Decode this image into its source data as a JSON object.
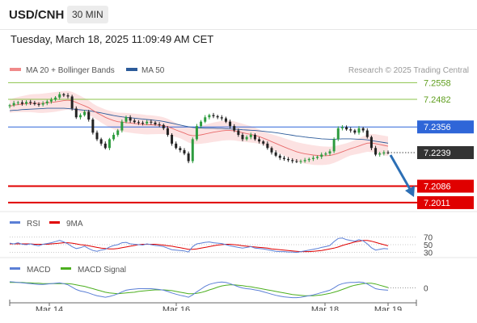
{
  "header": {
    "symbol": "USD/CNH",
    "interval": "30 MIN",
    "timestamp": "Tuesday, March 18, 2025 11:09:49 AM CET"
  },
  "chart_data": {
    "type": "candlestick",
    "legend": [
      {
        "name": "MA 20 + Bollinger Bands",
        "color": "#f08a8a"
      },
      {
        "name": "MA 50",
        "color": "#2c5b9a"
      }
    ],
    "copyright": "Research © 2025 Trading Central",
    "price_ylim": [
      7.1985,
      7.2585
    ],
    "levels": [
      {
        "label": "7.2558",
        "value": 7.2558,
        "kind": "resistance",
        "color": "#8bc34a"
      },
      {
        "label": "7.2482",
        "value": 7.2482,
        "kind": "resistance",
        "color": "#8bc34a"
      },
      {
        "label": "7.2356",
        "value": 7.2356,
        "kind": "pivot",
        "color": "#2f66d8"
      },
      {
        "label": "7.2239",
        "value": 7.2239,
        "kind": "last",
        "color": "#333333"
      },
      {
        "label": "7.2086",
        "value": 7.2086,
        "kind": "target",
        "color": "#e00000"
      },
      {
        "label": "7.2011",
        "value": 7.2011,
        "kind": "target",
        "color": "#e00000"
      }
    ],
    "forecast_arrow": {
      "from": 7.2239,
      "to": 7.204,
      "color": "#2c6fb5"
    },
    "close": [
      7.2455,
      7.2465,
      7.2468,
      7.2462,
      7.247,
      7.2466,
      7.246,
      7.2458,
      7.2464,
      7.2472,
      7.248,
      7.249,
      7.2505,
      7.25,
      7.2495,
      7.244,
      7.24,
      7.241,
      7.2425,
      7.239,
      7.233,
      7.23,
      7.228,
      7.226,
      7.23,
      7.232,
      7.234,
      7.238,
      7.24,
      7.2385,
      7.2378,
      7.2375,
      7.2372,
      7.238,
      7.2376,
      7.2368,
      7.2365,
      7.235,
      7.232,
      7.228,
      7.226,
      7.225,
      7.2235,
      7.22,
      7.23,
      7.236,
      7.238,
      7.24,
      7.241,
      7.2405,
      7.24,
      7.2395,
      7.238,
      7.236,
      7.234,
      7.232,
      7.23,
      7.231,
      7.232,
      7.23,
      7.229,
      7.228,
      7.226,
      7.224,
      7.2225,
      7.2215,
      7.221,
      7.2205,
      7.22,
      7.2198,
      7.22,
      7.2205,
      7.221,
      7.2215,
      7.222,
      7.223,
      7.2235,
      7.2245,
      7.23,
      7.235,
      7.2355,
      7.2345,
      7.234,
      7.233,
      7.235,
      7.234,
      7.231,
      7.226,
      7.223,
      7.2235,
      7.224,
      7.2239
    ],
    "ma20": [
      7.245,
      7.2455,
      7.2458,
      7.246,
      7.2462,
      7.2464,
      7.2464,
      7.2463,
      7.2464,
      7.2466,
      7.2468,
      7.247,
      7.2473,
      7.2476,
      7.2478,
      7.2475,
      7.2468,
      7.246,
      7.2452,
      7.2444,
      7.2432,
      7.242,
      7.241,
      7.24,
      7.2392,
      7.2385,
      7.238,
      7.2378,
      7.2376,
      7.2374,
      7.2372,
      7.237,
      7.2368,
      7.2366,
      7.2366,
      7.2365,
      7.2364,
      7.2362,
      7.2357,
      7.235,
      7.2342,
      7.2335,
      7.2328,
      7.232,
      7.2316,
      7.2317,
      7.232,
      7.2324,
      7.2328,
      7.2332,
      7.2335,
      7.2338,
      7.234,
      7.234,
      7.2338,
      7.2334,
      7.233,
      7.2326,
      7.2322,
      7.2318,
      7.2312,
      7.2305,
      7.2297,
      7.2289,
      7.2281,
      7.2273,
      7.2265,
      7.2257,
      7.225,
      7.2243,
      7.2238,
      7.2234,
      7.2231,
      7.2228,
      7.2226,
      7.2225,
      7.2225,
      7.2226,
      7.223,
      7.2236,
      7.2243,
      7.225,
      7.2257,
      7.2263,
      7.2269,
      7.2276,
      7.2282,
      7.2283,
      7.228,
      7.2276,
      7.2272,
      7.2268
    ],
    "ma50": [
      7.243,
      7.2432,
      7.2433,
      7.2435,
      7.2436,
      7.2437,
      7.2438,
      7.2439,
      7.244,
      7.2441,
      7.2441,
      7.2441,
      7.2441,
      7.2441,
      7.244,
      7.2438,
      7.2436,
      7.2434,
      7.2432,
      7.243,
      7.2427,
      7.2423,
      7.242,
      7.2416,
      7.2412,
      7.2408,
      7.2405,
      7.2402,
      7.24,
      7.2398,
      7.2396,
      7.2394,
      7.2392,
      7.239,
      7.2388,
      7.2386,
      7.2384,
      7.2381,
      7.2377,
      7.2373,
      7.2369,
      7.2365,
      7.2361,
      7.2357,
      7.2354,
      7.2352,
      7.2351,
      7.235,
      7.235,
      7.235,
      7.2349,
      7.2349,
      7.2348,
      7.2347,
      7.2346,
      7.2345,
      7.2343,
      7.2342,
      7.2341,
      7.234,
      7.2338,
      7.2336,
      7.2334,
      7.2332,
      7.233,
      7.2327,
      7.2324,
      7.2321,
      7.2318,
      7.2315,
      7.2313,
      7.231,
      7.2308,
      7.2306,
      7.2304,
      7.2302,
      7.2301,
      7.23,
      7.23,
      7.2301,
      7.2302,
      7.2302,
      7.2302,
      7.2301,
      7.23,
      7.2299,
      7.2297,
      7.2294,
      7.2291,
      7.2288,
      7.2285,
      7.2282
    ],
    "rsi": {
      "legend": [
        {
          "name": "RSI",
          "color": "#5b7fd6"
        },
        {
          "name": "9MA",
          "color": "#e00000"
        }
      ],
      "ylim": [
        25,
        75
      ],
      "ticks": [
        "70",
        "50",
        "30"
      ],
      "rsi": [
        54,
        52,
        55,
        51,
        50,
        52,
        49,
        47,
        51,
        53,
        55,
        58,
        61,
        57,
        52,
        45,
        40,
        42,
        46,
        40,
        35,
        33,
        36,
        38,
        44,
        48,
        50,
        55,
        56,
        52,
        51,
        50,
        49,
        52,
        50,
        48,
        47,
        45,
        41,
        37,
        36,
        35,
        34,
        31,
        45,
        52,
        54,
        56,
        57,
        55,
        54,
        53,
        50,
        47,
        45,
        43,
        41,
        43,
        45,
        41,
        40,
        39,
        37,
        35,
        33,
        32,
        32,
        31,
        31,
        30,
        32,
        34,
        36,
        38,
        40,
        43,
        45,
        48,
        58,
        66,
        67,
        63,
        61,
        59,
        63,
        60,
        52,
        42,
        36,
        38,
        40,
        39
      ],
      "ma": [
        52,
        52,
        52,
        52,
        52,
        52,
        51,
        51,
        51,
        51,
        52,
        53,
        54,
        55,
        55,
        54,
        52,
        50,
        49,
        47,
        45,
        43,
        41,
        40,
        39,
        39,
        40,
        42,
        44,
        46,
        48,
        50,
        51,
        51,
        51,
        51,
        50,
        49,
        47,
        46,
        44,
        42,
        40,
        38,
        38,
        39,
        41,
        43,
        45,
        47,
        49,
        50,
        51,
        51,
        50,
        49,
        47,
        46,
        45,
        44,
        43,
        42,
        41,
        39,
        38,
        37,
        36,
        35,
        34,
        33,
        32,
        32,
        32,
        33,
        34,
        35,
        37,
        39,
        41,
        44,
        48,
        51,
        54,
        57,
        59,
        61,
        61,
        59,
        56,
        53,
        50,
        47
      ]
    },
    "macd": {
      "legend": [
        {
          "name": "MACD",
          "color": "#5b7fd6"
        },
        {
          "name": "MACD Signal",
          "color": "#4caf1f"
        }
      ],
      "ylim": [
        -0.003,
        0.0024
      ],
      "zero_label": "0",
      "macd": [
        0.0016,
        0.0015,
        0.0014,
        0.0013,
        0.0012,
        0.0011,
        0.001,
        0.0009,
        0.0009,
        0.001,
        0.0011,
        0.0012,
        0.0013,
        0.0011,
        0.0008,
        0.0002,
        -0.0004,
        -0.0008,
        -0.001,
        -0.0013,
        -0.0017,
        -0.002,
        -0.0022,
        -0.0024,
        -0.0022,
        -0.0019,
        -0.0015,
        -0.001,
        -0.0006,
        -0.0004,
        -0.0003,
        -0.0002,
        -0.0002,
        -0.0002,
        -0.0002,
        -0.0003,
        -0.0004,
        -0.0006,
        -0.0009,
        -0.0013,
        -0.0016,
        -0.0019,
        -0.0021,
        -0.0024,
        -0.0018,
        -0.001,
        -0.0003,
        0.0004,
        0.0009,
        0.0012,
        0.0014,
        0.0015,
        0.0014,
        0.0011,
        0.0007,
        0.0003,
        0.0,
        -0.0002,
        -0.0003,
        -0.0005,
        -0.0007,
        -0.001,
        -0.0013,
        -0.0016,
        -0.0019,
        -0.0021,
        -0.0023,
        -0.0024,
        -0.0025,
        -0.0025,
        -0.0024,
        -0.0022,
        -0.002,
        -0.0018,
        -0.0015,
        -0.0012,
        -0.0009,
        -0.0006,
        0.0,
        0.0007,
        0.0011,
        0.0013,
        0.0014,
        0.0014,
        0.0015,
        0.0014,
        0.001,
        0.0004,
        -0.0002,
        -0.0004,
        -0.0005,
        -0.0006
      ],
      "signal": [
        0.0014,
        0.0014,
        0.0014,
        0.0014,
        0.0013,
        0.0013,
        0.0012,
        0.0012,
        0.0011,
        0.0011,
        0.0011,
        0.0011,
        0.0011,
        0.0011,
        0.0011,
        0.001,
        0.0008,
        0.0006,
        0.0004,
        0.0001,
        -0.0002,
        -0.0005,
        -0.0008,
        -0.0011,
        -0.0013,
        -0.0014,
        -0.0015,
        -0.0014,
        -0.0013,
        -0.0012,
        -0.0011,
        -0.0009,
        -0.0008,
        -0.0007,
        -0.0006,
        -0.0005,
        -0.0005,
        -0.0005,
        -0.0006,
        -0.0007,
        -0.0009,
        -0.0011,
        -0.0013,
        -0.0015,
        -0.0015,
        -0.0014,
        -0.0012,
        -0.0009,
        -0.0005,
        -0.0002,
        0.0002,
        0.0005,
        0.0007,
        0.0008,
        0.0008,
        0.0007,
        0.0006,
        0.0004,
        0.0003,
        0.0001,
        -0.0001,
        -0.0003,
        -0.0005,
        -0.0007,
        -0.0009,
        -0.0011,
        -0.0013,
        -0.0015,
        -0.0017,
        -0.0018,
        -0.0019,
        -0.002,
        -0.002,
        -0.002,
        -0.0019,
        -0.0018,
        -0.0016,
        -0.0014,
        -0.0011,
        -0.0008,
        -0.0004,
        0.0,
        0.0004,
        0.0007,
        0.0009,
        0.0011,
        0.0012,
        0.0012,
        0.001,
        0.0007,
        0.0004,
        0.0001
      ]
    },
    "x_ticks": [
      "Mar 14",
      "Mar 16",
      "Mar 18",
      "Mar 19"
    ]
  }
}
